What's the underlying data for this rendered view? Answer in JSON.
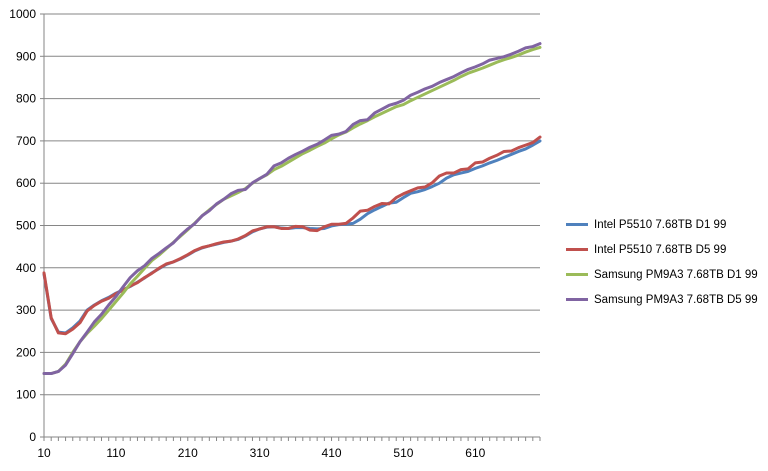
{
  "chart_data": {
    "type": "line",
    "title": "",
    "xlabel": "",
    "ylabel": "",
    "ylim": [
      0,
      1000
    ],
    "xlim": [
      10,
      700
    ],
    "y_ticks": [
      "0",
      "100",
      "200",
      "300",
      "400",
      "500",
      "600",
      "700",
      "800",
      "900",
      "1000"
    ],
    "x_ticks": [
      "10",
      "110",
      "210",
      "310",
      "410",
      "510",
      "610"
    ],
    "grid": "horizontal",
    "legend_position": "right",
    "x": [
      10,
      20,
      30,
      40,
      50,
      60,
      70,
      80,
      90,
      100,
      110,
      120,
      130,
      140,
      150,
      160,
      170,
      180,
      190,
      200,
      210,
      220,
      230,
      240,
      250,
      260,
      270,
      280,
      290,
      300,
      310,
      320,
      330,
      340,
      350,
      360,
      370,
      380,
      390,
      400,
      410,
      420,
      430,
      440,
      450,
      460,
      470,
      480,
      490,
      500,
      510,
      520,
      530,
      540,
      550,
      560,
      570,
      580,
      590,
      600,
      610,
      620,
      630,
      640,
      650,
      660,
      670,
      680,
      690,
      700
    ],
    "series": [
      {
        "name": "Intel P5510 7.68TB D1 99",
        "color": "#4f81bd",
        "values": [
          385,
          280,
          248,
          246,
          258,
          274,
          300,
          312,
          322,
          330,
          340,
          348,
          356,
          366,
          376,
          388,
          398,
          408,
          414,
          421,
          430,
          440,
          447,
          452,
          456,
          460,
          463,
          467,
          475,
          485,
          492,
          496,
          497,
          494,
          493,
          495,
          495,
          493,
          492,
          493,
          499,
          502,
          503,
          505,
          515,
          528,
          537,
          545,
          553,
          555,
          566,
          576,
          580,
          585,
          592,
          600,
          612,
          620,
          624,
          628,
          635,
          641,
          648,
          654,
          661,
          668,
          675,
          681,
          690,
          700
        ]
      },
      {
        "name": "Intel P5510 7.68TB D5 99",
        "color": "#c0504d",
        "values": [
          388,
          282,
          246,
          244,
          255,
          270,
          298,
          311,
          321,
          328,
          339,
          347,
          357,
          365,
          377,
          387,
          399,
          409,
          414,
          422,
          431,
          441,
          448,
          452,
          457,
          461,
          463,
          468,
          476,
          487,
          492,
          497,
          497,
          493,
          493,
          498,
          497,
          489,
          488,
          497,
          503,
          503,
          505,
          518,
          534,
          536,
          545,
          552,
          551,
          566,
          575,
          582,
          589,
          591,
          601,
          617,
          624,
          624,
          632,
          634,
          648,
          650,
          659,
          666,
          675,
          676,
          684,
          690,
          696,
          709
        ]
      },
      {
        "name": "Samsung PM9A3 7.68TB D1 99",
        "color": "#9bbb59",
        "values": [
          150,
          150,
          155,
          172,
          200,
          225,
          245,
          262,
          280,
          300,
          320,
          340,
          362,
          380,
          399,
          417,
          430,
          445,
          460,
          475,
          490,
          506,
          523,
          537,
          550,
          562,
          570,
          578,
          587,
          600,
          611,
          620,
          632,
          640,
          650,
          660,
          670,
          678,
          687,
          695,
          705,
          714,
          721,
          731,
          740,
          748,
          757,
          765,
          773,
          781,
          786,
          795,
          803,
          811,
          819,
          827,
          835,
          843,
          852,
          860,
          866,
          872,
          879,
          886,
          892,
          897,
          903,
          910,
          916,
          921
        ]
      },
      {
        "name": "Samsung PM9A3 7.68TB D5 99",
        "color": "#8064a2",
        "values": [
          150,
          150,
          155,
          170,
          197,
          225,
          248,
          272,
          290,
          312,
          332,
          355,
          377,
          393,
          405,
          422,
          434,
          447,
          459,
          477,
          492,
          505,
          523,
          535,
          551,
          562,
          575,
          583,
          585,
          601,
          611,
          621,
          641,
          648,
          659,
          668,
          676,
          685,
          692,
          702,
          713,
          716,
          722,
          739,
          748,
          750,
          766,
          775,
          784,
          789,
          796,
          808,
          815,
          823,
          829,
          838,
          845,
          852,
          861,
          869,
          875,
          882,
          891,
          895,
          899,
          905,
          912,
          920,
          923,
          930
        ]
      }
    ]
  }
}
